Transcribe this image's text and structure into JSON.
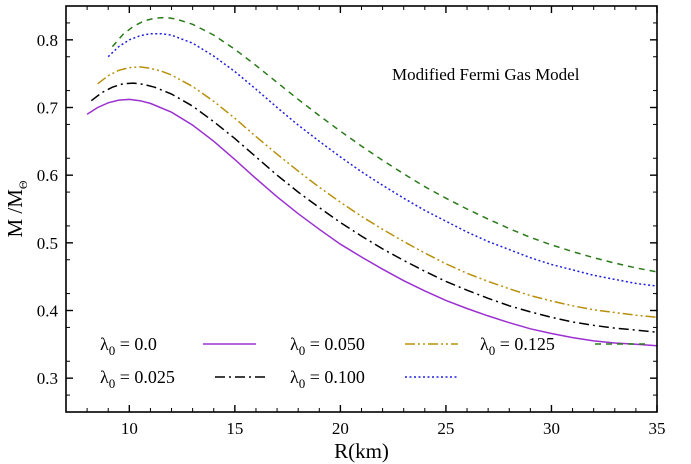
{
  "chart_data": {
    "type": "line",
    "title": "",
    "annotation": "Modified Fermi Gas Model",
    "xlabel": "R(km)",
    "ylabel": {
      "main": "M /M",
      "sub": "Θ"
    },
    "xlim": [
      7,
      35
    ],
    "ylim": [
      0.25,
      0.85
    ],
    "xticks": [
      10,
      15,
      20,
      25,
      30,
      35
    ],
    "yticks": [
      0.3,
      0.4,
      0.5,
      0.6,
      0.7,
      0.8
    ],
    "grid": false,
    "legend_position": "bottom-left",
    "series": [
      {
        "name": {
          "symbol": "λ",
          "sub": "0",
          "rest": " = 0.0"
        },
        "color": "#9b30d0",
        "dash": "solid",
        "points": [
          [
            8.0,
            0.69
          ],
          [
            8.5,
            0.7
          ],
          [
            9.0,
            0.707
          ],
          [
            9.5,
            0.711
          ],
          [
            10.0,
            0.712
          ],
          [
            10.5,
            0.71
          ],
          [
            11.0,
            0.706
          ],
          [
            12.0,
            0.693
          ],
          [
            13.0,
            0.674
          ],
          [
            14.0,
            0.65
          ],
          [
            15.0,
            0.623
          ],
          [
            16.0,
            0.595
          ],
          [
            17.0,
            0.568
          ],
          [
            18.0,
            0.543
          ],
          [
            19.0,
            0.52
          ],
          [
            20.0,
            0.498
          ],
          [
            21.0,
            0.479
          ],
          [
            22.0,
            0.461
          ],
          [
            23.0,
            0.444
          ],
          [
            24.0,
            0.429
          ],
          [
            25.0,
            0.415
          ],
          [
            26.0,
            0.403
          ],
          [
            27.0,
            0.392
          ],
          [
            28.0,
            0.382
          ],
          [
            29.0,
            0.373
          ],
          [
            30.0,
            0.366
          ],
          [
            31.0,
            0.36
          ],
          [
            32.0,
            0.355
          ],
          [
            33.0,
            0.352
          ],
          [
            34.0,
            0.35
          ],
          [
            35.0,
            0.348
          ]
        ]
      },
      {
        "name": {
          "symbol": "λ",
          "sub": "0",
          "rest": " = 0.025"
        },
        "color": "#000000",
        "dash": "dashdot",
        "points": [
          [
            8.2,
            0.71
          ],
          [
            8.7,
            0.722
          ],
          [
            9.2,
            0.73
          ],
          [
            9.7,
            0.735
          ],
          [
            10.2,
            0.736
          ],
          [
            10.7,
            0.734
          ],
          [
            11.2,
            0.73
          ],
          [
            12.0,
            0.72
          ],
          [
            13.0,
            0.702
          ],
          [
            14.0,
            0.679
          ],
          [
            15.0,
            0.654
          ],
          [
            16.0,
            0.627
          ],
          [
            17.0,
            0.6
          ],
          [
            18.0,
            0.575
          ],
          [
            19.0,
            0.552
          ],
          [
            20.0,
            0.53
          ],
          [
            21.0,
            0.51
          ],
          [
            22.0,
            0.491
          ],
          [
            23.0,
            0.474
          ],
          [
            24.0,
            0.458
          ],
          [
            25.0,
            0.443
          ],
          [
            26.0,
            0.43
          ],
          [
            27.0,
            0.418
          ],
          [
            28.0,
            0.407
          ],
          [
            29.0,
            0.398
          ],
          [
            30.0,
            0.39
          ],
          [
            31.0,
            0.383
          ],
          [
            32.0,
            0.378
          ],
          [
            33.0,
            0.374
          ],
          [
            34.0,
            0.371
          ],
          [
            35.0,
            0.368
          ]
        ]
      },
      {
        "name": {
          "symbol": "λ",
          "sub": "0",
          "rest": " = 0.050"
        },
        "color": "#b8900c",
        "dash": "dashdotdot",
        "points": [
          [
            8.5,
            0.735
          ],
          [
            9.0,
            0.747
          ],
          [
            9.5,
            0.755
          ],
          [
            10.0,
            0.759
          ],
          [
            10.5,
            0.76
          ],
          [
            11.0,
            0.758
          ],
          [
            11.5,
            0.754
          ],
          [
            12.0,
            0.748
          ],
          [
            13.0,
            0.731
          ],
          [
            14.0,
            0.709
          ],
          [
            15.0,
            0.684
          ],
          [
            16.0,
            0.657
          ],
          [
            17.0,
            0.631
          ],
          [
            18.0,
            0.606
          ],
          [
            19.0,
            0.582
          ],
          [
            20.0,
            0.56
          ],
          [
            21.0,
            0.539
          ],
          [
            22.0,
            0.52
          ],
          [
            23.0,
            0.502
          ],
          [
            24.0,
            0.485
          ],
          [
            25.0,
            0.469
          ],
          [
            26.0,
            0.455
          ],
          [
            27.0,
            0.443
          ],
          [
            28.0,
            0.432
          ],
          [
            29.0,
            0.422
          ],
          [
            30.0,
            0.414
          ],
          [
            31.0,
            0.407
          ],
          [
            32.0,
            0.401
          ],
          [
            33.0,
            0.397
          ],
          [
            34.0,
            0.393
          ],
          [
            35.0,
            0.39
          ]
        ]
      },
      {
        "name": {
          "symbol": "λ",
          "sub": "0",
          "rest": " = 0.100"
        },
        "color": "#1f1fe0",
        "dash": "dotted",
        "points": [
          [
            9.0,
            0.775
          ],
          [
            9.5,
            0.79
          ],
          [
            10.0,
            0.8
          ],
          [
            10.5,
            0.806
          ],
          [
            11.0,
            0.809
          ],
          [
            11.5,
            0.809
          ],
          [
            12.0,
            0.807
          ],
          [
            13.0,
            0.795
          ],
          [
            14.0,
            0.776
          ],
          [
            15.0,
            0.753
          ],
          [
            16.0,
            0.727
          ],
          [
            17.0,
            0.7
          ],
          [
            18.0,
            0.674
          ],
          [
            19.0,
            0.65
          ],
          [
            20.0,
            0.627
          ],
          [
            21.0,
            0.605
          ],
          [
            22.0,
            0.585
          ],
          [
            23.0,
            0.566
          ],
          [
            24.0,
            0.548
          ],
          [
            25.0,
            0.532
          ],
          [
            26.0,
            0.516
          ],
          [
            27.0,
            0.502
          ],
          [
            28.0,
            0.49
          ],
          [
            29.0,
            0.478
          ],
          [
            30.0,
            0.468
          ],
          [
            31.0,
            0.46
          ],
          [
            32.0,
            0.452
          ],
          [
            33.0,
            0.446
          ],
          [
            34.0,
            0.44
          ],
          [
            35.0,
            0.436
          ]
        ]
      },
      {
        "name": {
          "symbol": "λ",
          "sub": "0",
          "rest": " = 0.125"
        },
        "color": "#2a7a1a",
        "dash": "dashed",
        "points": [
          [
            9.2,
            0.79
          ],
          [
            9.7,
            0.808
          ],
          [
            10.2,
            0.82
          ],
          [
            10.7,
            0.828
          ],
          [
            11.2,
            0.832
          ],
          [
            11.7,
            0.833
          ],
          [
            12.2,
            0.831
          ],
          [
            13.0,
            0.823
          ],
          [
            14.0,
            0.807
          ],
          [
            15.0,
            0.786
          ],
          [
            16.0,
            0.762
          ],
          [
            17.0,
            0.737
          ],
          [
            18.0,
            0.712
          ],
          [
            19.0,
            0.688
          ],
          [
            20.0,
            0.665
          ],
          [
            21.0,
            0.643
          ],
          [
            22.0,
            0.622
          ],
          [
            23.0,
            0.602
          ],
          [
            24.0,
            0.583
          ],
          [
            25.0,
            0.566
          ],
          [
            26.0,
            0.55
          ],
          [
            27.0,
            0.535
          ],
          [
            28.0,
            0.521
          ],
          [
            29.0,
            0.508
          ],
          [
            30.0,
            0.497
          ],
          [
            31.0,
            0.487
          ],
          [
            32.0,
            0.478
          ],
          [
            33.0,
            0.47
          ],
          [
            34.0,
            0.463
          ],
          [
            35.0,
            0.457
          ]
        ]
      }
    ]
  }
}
